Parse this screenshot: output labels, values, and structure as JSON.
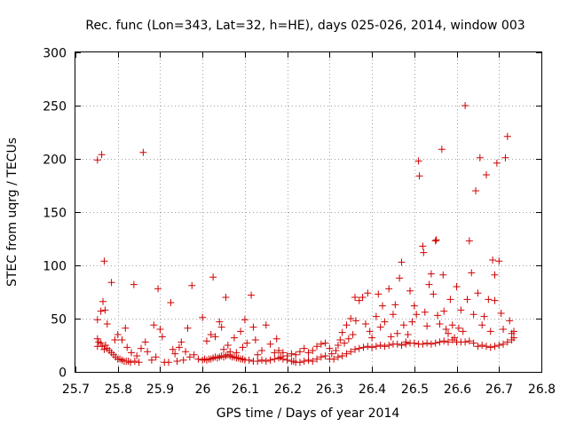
{
  "chart_data": {
    "type": "scatter",
    "title": "Rec. func (Lon=343, Lat=32, h=HE), days 025-026, 2014, window 003",
    "xlabel": "GPS time / Days of year 2014",
    "ylabel": "STEC from uqrg / TECUs",
    "xlim": [
      25.7,
      26.8
    ],
    "ylim": [
      0,
      300
    ],
    "xticks": [
      25.7,
      25.8,
      25.9,
      26.0,
      26.1,
      26.2,
      26.3,
      26.4,
      26.5,
      26.6,
      26.7,
      26.8
    ],
    "xtick_labels": [
      "25.7",
      "25.8",
      "25.9",
      "26",
      "26.1",
      "26.2",
      "26.3",
      "26.4",
      "26.5",
      "26.6",
      "26.7",
      "26.8"
    ],
    "yticks": [
      0,
      50,
      100,
      150,
      200,
      250,
      300
    ],
    "ytick_labels": [
      "0",
      "50",
      "100",
      "150",
      "200",
      "250",
      "300"
    ],
    "grid": true,
    "marker": "+",
    "color": "#d00000",
    "series": [
      {
        "name": "STEC",
        "points": [
          [
            25.752,
            199
          ],
          [
            25.762,
            204
          ],
          [
            25.768,
            104
          ],
          [
            25.785,
            84
          ],
          [
            25.765,
            66
          ],
          [
            25.76,
            57
          ],
          [
            25.752,
            49
          ],
          [
            25.752,
            31
          ],
          [
            25.755,
            28
          ],
          [
            25.752,
            24
          ],
          [
            25.76,
            27
          ],
          [
            25.763,
            24
          ],
          [
            25.768,
            21
          ],
          [
            25.771,
            25
          ],
          [
            25.775,
            22
          ],
          [
            25.78,
            20
          ],
          [
            25.785,
            18
          ],
          [
            25.79,
            16
          ],
          [
            25.795,
            14
          ],
          [
            25.8,
            12
          ],
          [
            25.805,
            12
          ],
          [
            25.81,
            11
          ],
          [
            25.815,
            10
          ],
          [
            25.82,
            10
          ],
          [
            25.825,
            10
          ],
          [
            25.83,
            9
          ],
          [
            25.84,
            10
          ],
          [
            25.85,
            9
          ],
          [
            25.77,
            58
          ],
          [
            25.775,
            45
          ],
          [
            25.793,
            30
          ],
          [
            25.8,
            35
          ],
          [
            25.81,
            30
          ],
          [
            25.818,
            41
          ],
          [
            25.822,
            23
          ],
          [
            25.832,
            18
          ],
          [
            25.838,
            82
          ],
          [
            25.845,
            15
          ],
          [
            25.855,
            22
          ],
          [
            25.86,
            206
          ],
          [
            25.865,
            28
          ],
          [
            25.87,
            19
          ],
          [
            25.88,
            11
          ],
          [
            25.885,
            44
          ],
          [
            25.89,
            14
          ],
          [
            25.895,
            78
          ],
          [
            25.9,
            40
          ],
          [
            25.905,
            33
          ],
          [
            25.91,
            9
          ],
          [
            25.92,
            9
          ],
          [
            25.925,
            65
          ],
          [
            25.93,
            21
          ],
          [
            25.935,
            17
          ],
          [
            25.94,
            10
          ],
          [
            25.945,
            23
          ],
          [
            25.95,
            28
          ],
          [
            25.955,
            11
          ],
          [
            25.96,
            19
          ],
          [
            25.965,
            41
          ],
          [
            25.97,
            14
          ],
          [
            25.975,
            81
          ],
          [
            25.98,
            16
          ],
          [
            25.99,
            12
          ],
          [
            26.0,
            11
          ],
          [
            26.005,
            12
          ],
          [
            26.01,
            11
          ],
          [
            26.015,
            12
          ],
          [
            26.02,
            12
          ],
          [
            26.025,
            13
          ],
          [
            26.03,
            14
          ],
          [
            26.035,
            13
          ],
          [
            26.04,
            14
          ],
          [
            26.045,
            15
          ],
          [
            26.05,
            14
          ],
          [
            26.055,
            15
          ],
          [
            26.06,
            16
          ],
          [
            26.065,
            15
          ],
          [
            26.07,
            14
          ],
          [
            26.075,
            14
          ],
          [
            26.08,
            13
          ],
          [
            26.085,
            13
          ],
          [
            26.09,
            12
          ],
          [
            26.095,
            12
          ],
          [
            26.0,
            51
          ],
          [
            26.01,
            29
          ],
          [
            26.02,
            35
          ],
          [
            26.025,
            89
          ],
          [
            26.03,
            33
          ],
          [
            26.04,
            47
          ],
          [
            26.045,
            42
          ],
          [
            26.05,
            21
          ],
          [
            26.055,
            70
          ],
          [
            26.06,
            25
          ],
          [
            26.065,
            19
          ],
          [
            26.075,
            32
          ],
          [
            26.08,
            18
          ],
          [
            26.09,
            38
          ],
          [
            26.095,
            23
          ],
          [
            26.1,
            49
          ],
          [
            26.105,
            27
          ],
          [
            26.115,
            72
          ],
          [
            26.12,
            42
          ],
          [
            26.125,
            30
          ],
          [
            26.13,
            16
          ],
          [
            26.14,
            20
          ],
          [
            26.15,
            44
          ],
          [
            26.16,
            26
          ],
          [
            26.17,
            18
          ],
          [
            26.175,
            31
          ],
          [
            26.1,
            11
          ],
          [
            26.11,
            11
          ],
          [
            26.12,
            10
          ],
          [
            26.13,
            10
          ],
          [
            26.14,
            11
          ],
          [
            26.15,
            10
          ],
          [
            26.16,
            11
          ],
          [
            26.17,
            12
          ],
          [
            26.18,
            13
          ],
          [
            26.185,
            14
          ],
          [
            26.19,
            12
          ],
          [
            26.2,
            11
          ],
          [
            26.21,
            10
          ],
          [
            26.215,
            10
          ],
          [
            26.22,
            9
          ],
          [
            26.23,
            9
          ],
          [
            26.24,
            10
          ],
          [
            26.25,
            11
          ],
          [
            26.26,
            10
          ],
          [
            26.27,
            12
          ],
          [
            26.28,
            14
          ],
          [
            26.29,
            15
          ],
          [
            26.3,
            12
          ],
          [
            26.31,
            12
          ],
          [
            26.32,
            14
          ],
          [
            26.33,
            15
          ],
          [
            26.18,
            20
          ],
          [
            26.19,
            18
          ],
          [
            26.2,
            15
          ],
          [
            26.21,
            17
          ],
          [
            26.22,
            16
          ],
          [
            26.23,
            19
          ],
          [
            26.24,
            22
          ],
          [
            26.25,
            18
          ],
          [
            26.26,
            20
          ],
          [
            26.27,
            24
          ],
          [
            26.28,
            26
          ],
          [
            26.29,
            27
          ],
          [
            26.3,
            22
          ],
          [
            26.305,
            17
          ],
          [
            26.315,
            20
          ],
          [
            26.32,
            25
          ],
          [
            26.325,
            30
          ],
          [
            26.33,
            37
          ],
          [
            26.335,
            27
          ],
          [
            26.34,
            44
          ],
          [
            26.345,
            31
          ],
          [
            26.35,
            50
          ],
          [
            26.355,
            35
          ],
          [
            26.36,
            70
          ],
          [
            26.362,
            48
          ],
          [
            26.37,
            67
          ],
          [
            26.378,
            70
          ],
          [
            26.385,
            45
          ],
          [
            26.39,
            74
          ],
          [
            26.395,
            38
          ],
          [
            26.4,
            32
          ],
          [
            26.41,
            52
          ],
          [
            26.415,
            73
          ],
          [
            26.42,
            42
          ],
          [
            26.425,
            62
          ],
          [
            26.43,
            47
          ],
          [
            26.44,
            78
          ],
          [
            26.445,
            33
          ],
          [
            26.45,
            54
          ],
          [
            26.455,
            63
          ],
          [
            26.46,
            36
          ],
          [
            26.465,
            88
          ],
          [
            26.47,
            103
          ],
          [
            26.475,
            44
          ],
          [
            26.48,
            28
          ],
          [
            26.485,
            35
          ],
          [
            26.49,
            76
          ],
          [
            26.495,
            47
          ],
          [
            26.34,
            17
          ],
          [
            26.35,
            19
          ],
          [
            26.36,
            21
          ],
          [
            26.37,
            22
          ],
          [
            26.38,
            23
          ],
          [
            26.39,
            24
          ],
          [
            26.4,
            23
          ],
          [
            26.41,
            24
          ],
          [
            26.42,
            25
          ],
          [
            26.43,
            24
          ],
          [
            26.44,
            25
          ],
          [
            26.45,
            26
          ],
          [
            26.46,
            26
          ],
          [
            26.47,
            25
          ],
          [
            26.48,
            26
          ],
          [
            26.49,
            27
          ],
          [
            26.5,
            27
          ],
          [
            26.51,
            26
          ],
          [
            26.52,
            26
          ],
          [
            26.53,
            27
          ],
          [
            26.54,
            26
          ],
          [
            26.55,
            27
          ],
          [
            26.56,
            28
          ],
          [
            26.57,
            29
          ],
          [
            26.58,
            28
          ],
          [
            26.59,
            30
          ],
          [
            26.6,
            28
          ],
          [
            26.61,
            28
          ],
          [
            26.62,
            28
          ],
          [
            26.63,
            29
          ],
          [
            26.64,
            27
          ],
          [
            26.65,
            24
          ],
          [
            26.66,
            25
          ],
          [
            26.67,
            24
          ],
          [
            26.68,
            23
          ],
          [
            26.69,
            24
          ],
          [
            26.7,
            25
          ],
          [
            26.71,
            26
          ],
          [
            26.72,
            28
          ],
          [
            26.73,
            30
          ],
          [
            26.735,
            32
          ],
          [
            26.5,
            62
          ],
          [
            26.505,
            54
          ],
          [
            26.51,
            198
          ],
          [
            26.512,
            184
          ],
          [
            26.52,
            118
          ],
          [
            26.522,
            112
          ],
          [
            26.525,
            56
          ],
          [
            26.53,
            43
          ],
          [
            26.535,
            82
          ],
          [
            26.54,
            92
          ],
          [
            26.545,
            73
          ],
          [
            26.55,
            123
          ],
          [
            26.552,
            124
          ],
          [
            26.555,
            53
          ],
          [
            26.56,
            45
          ],
          [
            26.565,
            209
          ],
          [
            26.568,
            91
          ],
          [
            26.57,
            57
          ],
          [
            26.575,
            40
          ],
          [
            26.58,
            36
          ],
          [
            26.585,
            68
          ],
          [
            26.59,
            44
          ],
          [
            26.595,
            32
          ],
          [
            26.6,
            80
          ],
          [
            26.605,
            41
          ],
          [
            26.61,
            58
          ],
          [
            26.615,
            38
          ],
          [
            26.62,
            250
          ],
          [
            26.625,
            68
          ],
          [
            26.63,
            123
          ],
          [
            26.635,
            93
          ],
          [
            26.64,
            54
          ],
          [
            26.645,
            170
          ],
          [
            26.65,
            74
          ],
          [
            26.655,
            201
          ],
          [
            26.66,
            44
          ],
          [
            26.665,
            52
          ],
          [
            26.67,
            185
          ],
          [
            26.675,
            68
          ],
          [
            26.68,
            38
          ],
          [
            26.685,
            105
          ],
          [
            26.69,
            67
          ],
          [
            26.695,
            196
          ],
          [
            26.7,
            104
          ],
          [
            26.705,
            55
          ],
          [
            26.71,
            40
          ],
          [
            26.715,
            201
          ],
          [
            26.72,
            221
          ],
          [
            26.725,
            48
          ],
          [
            26.73,
            36
          ],
          [
            26.735,
            38
          ],
          [
            26.69,
            91
          ]
        ]
      }
    ]
  }
}
